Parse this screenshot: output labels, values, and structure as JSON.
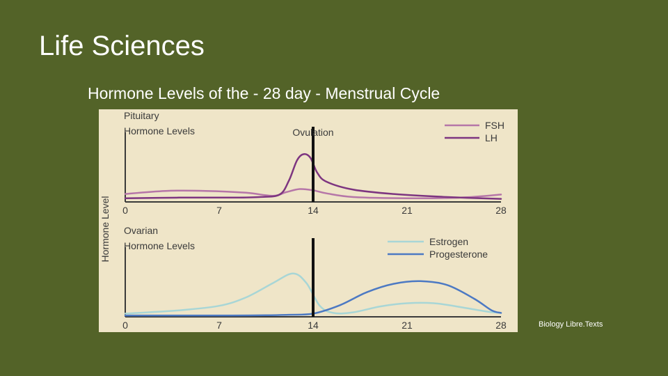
{
  "slide": {
    "title": "Life Sciences",
    "subtitle": "Hormone Levels of the - 28 day - Menstrual Cycle",
    "credit": "Biology Libre.Texts"
  },
  "colors": {
    "background": "#536328",
    "panel": "#efe5c8",
    "fsh": "#b676a8",
    "lh": "#7d3580",
    "estrogen": "#a8d6d6",
    "progesterone": "#4c79c3",
    "ovulation_line": "#111111"
  },
  "chart_data": [
    {
      "type": "line",
      "title_lines": [
        "Pituitary",
        "Hormone Levels"
      ],
      "ylabel": "Hormone Level",
      "xticks": [
        0,
        7,
        14,
        21,
        28
      ],
      "xlim": [
        0,
        28
      ],
      "ylim": [
        0,
        1
      ],
      "marker": {
        "x": 14,
        "label": "Ovulation"
      },
      "legend_position": "top-right",
      "series": [
        {
          "name": "FSH",
          "color_key": "fsh",
          "points": [
            [
              0,
              0.13
            ],
            [
              3,
              0.18
            ],
            [
              6,
              0.18
            ],
            [
              9,
              0.15
            ],
            [
              11,
              0.1
            ],
            [
              12,
              0.16
            ],
            [
              13,
              0.21
            ],
            [
              14,
              0.19
            ],
            [
              15,
              0.14
            ],
            [
              17,
              0.08
            ],
            [
              21,
              0.06
            ],
            [
              25,
              0.07
            ],
            [
              28,
              0.12
            ]
          ]
        },
        {
          "name": "LH",
          "color_key": "lh",
          "points": [
            [
              0,
              0.06
            ],
            [
              4,
              0.07
            ],
            [
              8,
              0.07
            ],
            [
              10,
              0.08
            ],
            [
              11.5,
              0.12
            ],
            [
              12.2,
              0.35
            ],
            [
              12.8,
              0.68
            ],
            [
              13.3,
              0.78
            ],
            [
              13.8,
              0.72
            ],
            [
              14.3,
              0.48
            ],
            [
              15,
              0.33
            ],
            [
              17,
              0.2
            ],
            [
              20,
              0.13
            ],
            [
              24,
              0.08
            ],
            [
              28,
              0.05
            ]
          ]
        }
      ]
    },
    {
      "type": "line",
      "title_lines": [
        "Ovarian",
        "Hormone Levels"
      ],
      "ylabel": "",
      "xticks": [
        0,
        7,
        14,
        21,
        28
      ],
      "xlim": [
        0,
        28
      ],
      "ylim": [
        0,
        1
      ],
      "marker": {
        "x": 14,
        "label": ""
      },
      "legend_position": "top-right",
      "series": [
        {
          "name": "Estrogen",
          "color_key": "estrogen",
          "points": [
            [
              0,
              0.05
            ],
            [
              4,
              0.1
            ],
            [
              7,
              0.17
            ],
            [
              9,
              0.3
            ],
            [
              11,
              0.52
            ],
            [
              12.5,
              0.67
            ],
            [
              13.5,
              0.52
            ],
            [
              14.5,
              0.17
            ],
            [
              15.5,
              0.06
            ],
            [
              17,
              0.07
            ],
            [
              19,
              0.16
            ],
            [
              21,
              0.21
            ],
            [
              23,
              0.21
            ],
            [
              25,
              0.15
            ],
            [
              27,
              0.08
            ],
            [
              28,
              0.06
            ]
          ]
        },
        {
          "name": "Progesterone",
          "color_key": "progesterone",
          "points": [
            [
              0,
              0.02
            ],
            [
              8,
              0.02
            ],
            [
              12,
              0.03
            ],
            [
              14,
              0.05
            ],
            [
              16,
              0.18
            ],
            [
              18,
              0.38
            ],
            [
              20,
              0.51
            ],
            [
              22,
              0.55
            ],
            [
              24,
              0.49
            ],
            [
              26,
              0.28
            ],
            [
              27.3,
              0.1
            ],
            [
              28,
              0.06
            ]
          ]
        }
      ]
    }
  ]
}
